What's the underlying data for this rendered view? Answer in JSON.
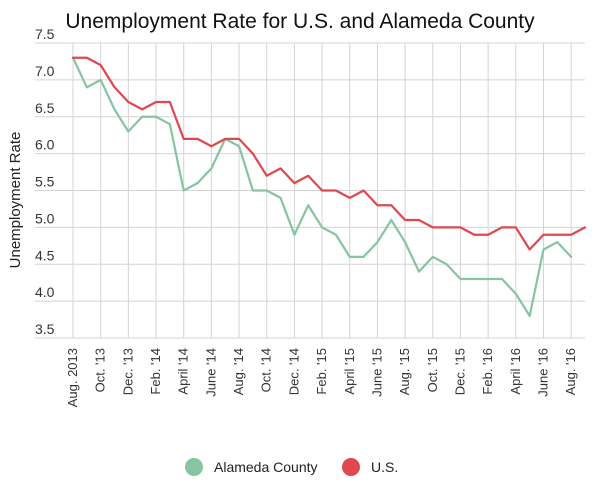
{
  "chart_data": {
    "type": "line",
    "title": "Unemployment Rate for U.S. and Alameda County",
    "xlabel": "",
    "ylabel": "Unemployment Rate",
    "ylim": [
      3.5,
      7.5
    ],
    "yticks": [
      "7.5",
      "7.0",
      "6.5",
      "6.0",
      "5.5",
      "5.0",
      "4.5",
      "4.0",
      "3.5"
    ],
    "ytick_values": [
      7.5,
      7.0,
      6.5,
      6.0,
      5.5,
      5.0,
      4.5,
      4.0,
      3.5
    ],
    "x_tick_labels": [
      "Aug. 2013",
      "Oct. '13",
      "Dec. '13",
      "Feb. '14",
      "April '14",
      "June '14",
      "Aug. '14",
      "Oct. '14",
      "Dec. '14",
      "Feb. '15",
      "April '15",
      "June '15",
      "Aug. '15",
      "Oct. '15",
      "Dec. '15",
      "Feb. '16",
      "April '16",
      "June '16",
      "Aug. '16"
    ],
    "x": [
      "Aug 2013",
      "Sep 2013",
      "Oct 2013",
      "Nov 2013",
      "Dec 2013",
      "Jan 2014",
      "Feb 2014",
      "Mar 2014",
      "Apr 2014",
      "May 2014",
      "Jun 2014",
      "Jul 2014",
      "Aug 2014",
      "Sep 2014",
      "Oct 2014",
      "Nov 2014",
      "Dec 2014",
      "Jan 2015",
      "Feb 2015",
      "Mar 2015",
      "Apr 2015",
      "May 2015",
      "Jun 2015",
      "Jul 2015",
      "Aug 2015",
      "Sep 2015",
      "Oct 2015",
      "Nov 2015",
      "Dec 2015",
      "Jan 2016",
      "Feb 2016",
      "Mar 2016",
      "Apr 2016",
      "May 2016",
      "Jun 2016",
      "Jul 2016",
      "Aug 2016",
      "Sep 2016"
    ],
    "grid": true,
    "legend_position": "bottom-center",
    "series": [
      {
        "name": "Alameda County",
        "color": "#87c4a0",
        "values": [
          7.3,
          6.9,
          7.0,
          6.6,
          6.3,
          6.5,
          6.5,
          6.4,
          5.5,
          5.6,
          5.8,
          6.2,
          6.1,
          5.5,
          5.5,
          5.4,
          4.9,
          5.3,
          5.0,
          4.9,
          4.6,
          4.6,
          4.8,
          5.1,
          4.8,
          4.4,
          4.6,
          4.5,
          4.3,
          4.3,
          4.3,
          4.3,
          4.1,
          3.8,
          4.7,
          4.8,
          4.6,
          null
        ]
      },
      {
        "name": "U.S.",
        "color": "#e0474f",
        "values": [
          7.3,
          7.3,
          7.2,
          6.9,
          6.7,
          6.6,
          6.7,
          6.7,
          6.2,
          6.2,
          6.1,
          6.2,
          6.2,
          6.0,
          5.7,
          5.8,
          5.6,
          5.7,
          5.5,
          5.5,
          5.4,
          5.5,
          5.3,
          5.3,
          5.1,
          5.1,
          5.0,
          5.0,
          5.0,
          4.9,
          4.9,
          5.0,
          5.0,
          4.7,
          4.9,
          4.9,
          4.9,
          5.0
        ]
      }
    ]
  }
}
